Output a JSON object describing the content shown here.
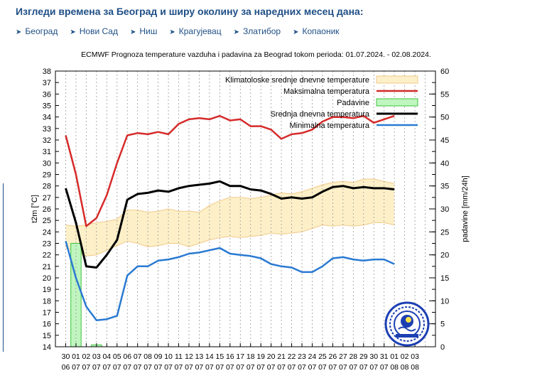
{
  "page": {
    "heading": "Изгледи времена за Београд и ширу околину за наредних месец дана:",
    "links": [
      {
        "label": "Београд"
      },
      {
        "label": "Нови Сад"
      },
      {
        "label": "Ниш"
      },
      {
        "label": "Крагујевац"
      },
      {
        "label": "Златибор"
      },
      {
        "label": "Копаоник"
      }
    ]
  },
  "chart_data": {
    "type": "line",
    "title": "ECMWF Prognoza temperature  vazduha i padavina za Beograd tokom perioda: 01.07.2024. - 02.08.2024.",
    "ylabel": "t2m [°C]",
    "y2label": "padavine [mm/24h]",
    "ylim": [
      14,
      38
    ],
    "y2lim": [
      0,
      60
    ],
    "yticks": [
      14,
      15,
      16,
      17,
      18,
      19,
      20,
      21,
      22,
      23,
      24,
      25,
      26,
      27,
      28,
      29,
      30,
      31,
      32,
      33,
      34,
      35,
      36,
      37,
      38
    ],
    "y2ticks": [
      0,
      5,
      10,
      15,
      20,
      25,
      30,
      35,
      40,
      45,
      50,
      55,
      60
    ],
    "xlim": [
      0,
      37
    ],
    "x_tick_labels": [
      [
        "30",
        "06"
      ],
      [
        "01",
        "07"
      ],
      [
        "02",
        "07"
      ],
      [
        "03",
        "07"
      ],
      [
        "04",
        "07"
      ],
      [
        "05",
        "07"
      ],
      [
        "06",
        "07"
      ],
      [
        "07",
        "07"
      ],
      [
        "08",
        "07"
      ],
      [
        "09",
        "07"
      ],
      [
        "10",
        "07"
      ],
      [
        "11",
        "07"
      ],
      [
        "12",
        "07"
      ],
      [
        "13",
        "07"
      ],
      [
        "14",
        "07"
      ],
      [
        "15",
        "07"
      ],
      [
        "16",
        "07"
      ],
      [
        "17",
        "07"
      ],
      [
        "18",
        "07"
      ],
      [
        "19",
        "07"
      ],
      [
        "20",
        "07"
      ],
      [
        "21",
        "07"
      ],
      [
        "22",
        "07"
      ],
      [
        "23",
        "07"
      ],
      [
        "24",
        "07"
      ],
      [
        "25",
        "07"
      ],
      [
        "26",
        "07"
      ],
      [
        "27",
        "07"
      ],
      [
        "28",
        "07"
      ],
      [
        "29",
        "07"
      ],
      [
        "30",
        "07"
      ],
      [
        "31",
        "07"
      ],
      [
        "01",
        "08"
      ],
      [
        "02",
        "08"
      ],
      [
        "03",
        "08"
      ]
    ],
    "grid": "dashed-vertical",
    "legend_position": "top-right",
    "legend": [
      {
        "name": "Klimatoloske srednje dnevne temperature",
        "color": "#fdf0c8",
        "kind": "band"
      },
      {
        "name": "Maksimalna temperatura",
        "color": "#d62a2a",
        "kind": "line"
      },
      {
        "name": "Padavine",
        "color": "#bff5bf",
        "kind": "box"
      },
      {
        "name": "Srednja dnevna temperatura",
        "color": "#000000",
        "kind": "line"
      },
      {
        "name": "Minimalna temperatura",
        "color": "#2a7ad2",
        "kind": "line"
      }
    ],
    "x": [
      1,
      2,
      3,
      4,
      5,
      6,
      7,
      8,
      9,
      10,
      11,
      12,
      13,
      14,
      15,
      16,
      17,
      18,
      19,
      20,
      21,
      22,
      23,
      24,
      25,
      26,
      27,
      28,
      29,
      30,
      31,
      32,
      33
    ],
    "series": [
      {
        "name": "Maksimalna temperatura",
        "axis": "left",
        "color": "#d62a2a",
        "values": [
          32.4,
          29,
          24.5,
          25.2,
          27.2,
          30,
          32.4,
          32.6,
          32.5,
          32.7,
          32.5,
          33.4,
          33.8,
          33.9,
          33.8,
          34.1,
          33.7,
          33.8,
          33.2,
          33.2,
          32.9,
          32.1,
          32.5,
          32.6,
          32.9,
          33.6,
          34.0,
          34.0,
          33.9,
          34.1,
          33.5,
          33.8,
          34.1
        ]
      },
      {
        "name": "Srednja dnevna temperatura",
        "axis": "left",
        "color": "#000000",
        "values": [
          27.8,
          24.8,
          21.0,
          20.9,
          22.0,
          23.3,
          26.8,
          27.3,
          27.4,
          27.6,
          27.5,
          27.8,
          28.0,
          28.1,
          28.2,
          28.4,
          28.0,
          28.0,
          27.7,
          27.6,
          27.3,
          26.9,
          27.0,
          26.9,
          27.0,
          27.5,
          27.9,
          28.0,
          27.8,
          27.9,
          27.8,
          27.8,
          27.7
        ]
      },
      {
        "name": "Minimalna temperatura",
        "axis": "left",
        "color": "#2a7ad2",
        "values": [
          23.2,
          20.0,
          17.5,
          16.3,
          16.4,
          16.7,
          20.2,
          21.0,
          21.0,
          21.5,
          21.6,
          21.8,
          22.1,
          22.2,
          22.4,
          22.6,
          22.1,
          22.0,
          21.9,
          21.7,
          21.2,
          21.0,
          20.9,
          20.5,
          20.5,
          21.0,
          21.7,
          21.8,
          21.6,
          21.5,
          21.6,
          21.6,
          21.2
        ]
      },
      {
        "name": "Klimatoloske srednje dnevne temperature (upper)",
        "axis": "left",
        "color": "#fdf0c8",
        "values": [
          24.6,
          24.5,
          24.6,
          24.8,
          24.9,
          25.1,
          25.9,
          25.9,
          25.7,
          25.8,
          26.0,
          25.8,
          25.8,
          25.7,
          26.3,
          26.7,
          27.0,
          27.0,
          26.9,
          27.0,
          27.2,
          27.4,
          27.3,
          27.5,
          27.8,
          28.1,
          28.3,
          28.4,
          28.3,
          28.6,
          28.6,
          28.4,
          28.2
        ]
      },
      {
        "name": "Klimatoloske srednje dnevne temperature (lower)",
        "axis": "left",
        "color": "#fdf0c8",
        "values": [
          22.6,
          22.3,
          21.9,
          22.0,
          22.4,
          22.8,
          23.2,
          23.0,
          22.7,
          22.8,
          23.0,
          23.0,
          22.7,
          23.0,
          23.3,
          23.5,
          23.6,
          23.5,
          23.6,
          23.7,
          23.9,
          23.8,
          23.9,
          24.0,
          24.3,
          24.6,
          24.5,
          24.6,
          24.5,
          24.6,
          24.8,
          24.8,
          24.6
        ]
      },
      {
        "name": "Padavine",
        "axis": "right",
        "color": "#bff5bf",
        "values": [
          0,
          22.5,
          0,
          0.4,
          0,
          0,
          0,
          0,
          0,
          0,
          0,
          0,
          0,
          0,
          0,
          0,
          0,
          0,
          0,
          0,
          0,
          0,
          0,
          0,
          0,
          0,
          0,
          0,
          0,
          0,
          0,
          0,
          0
        ]
      }
    ]
  }
}
